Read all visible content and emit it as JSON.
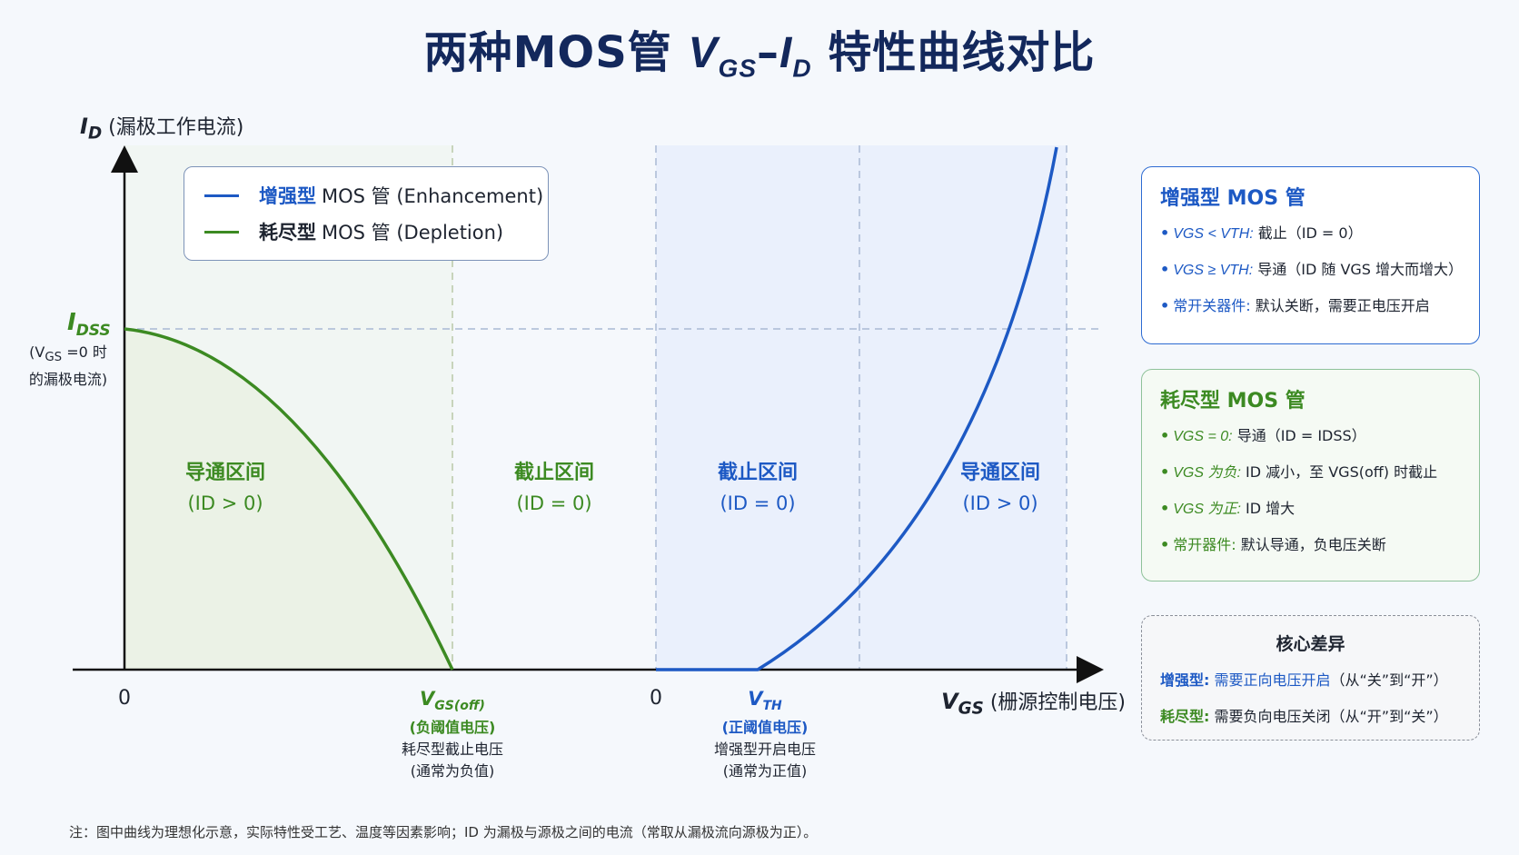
{
  "title": {
    "prefix": "两种MOS管",
    "v": "V",
    "v_sub": "GS",
    "dash": "–",
    "i": "I",
    "i_sub": "D",
    "suffix": "特性曲线对比"
  },
  "axes": {
    "y_label_main": "I",
    "y_label_sub": "D",
    "y_label_rest": "(漏极工作电流)",
    "x_label_main": "V",
    "x_label_sub": "GS",
    "x_label_rest": "(栅源控制电压)",
    "zero_left": "0",
    "zero_right": "0"
  },
  "idss": {
    "main": "I",
    "sub": "DSS",
    "note_line1_pre": "(V",
    "note_line1_sub": "GS",
    "note_line1_post": " =0 时",
    "note_line2": "的漏极电流)"
  },
  "legend": {
    "enh_cn": "增强型",
    "enh_rest": "MOS 管 (Enhancement)",
    "dep_cn": "耗尽型",
    "dep_rest": "MOS 管 (Depletion)"
  },
  "regions": {
    "dep_on": {
      "title": "导通区间",
      "cond": "(ID > 0)"
    },
    "dep_off": {
      "title": "截止区间",
      "cond": "(ID = 0)"
    },
    "enh_off": {
      "title": "截止区间",
      "cond": "(ID = 0)"
    },
    "enh_on": {
      "title": "导通区间",
      "cond": "(ID > 0)"
    }
  },
  "vgs_off": {
    "sym": "V",
    "sub": "GS(off)",
    "line2": "(负阈值电压)",
    "line3": "耗尽型截止电压",
    "line4": "(通常为负值)"
  },
  "vth": {
    "sym": "V",
    "sub": "TH",
    "line2": "(正阈值电压)",
    "line3": "增强型开启电压",
    "line4": "(通常为正值)"
  },
  "card_enh": {
    "title": "增强型 MOS 管",
    "items": [
      {
        "key": "VGS < VTH:",
        "text": "截止（ID = 0）"
      },
      {
        "key": "VGS ≥ VTH:",
        "text": "导通（ID 随 VGS 增大而增大）"
      },
      {
        "key": "常开关器件:",
        "text": "默认关断，需要正电压开启"
      }
    ]
  },
  "card_dep": {
    "title": "耗尽型 MOS 管",
    "items": [
      {
        "key": "VGS = 0:",
        "text": "导通（ID = IDSS）"
      },
      {
        "key": "VGS 为负:",
        "text": "ID 减小，至 VGS(off) 时截止"
      },
      {
        "key": "VGS 为正:",
        "text": "ID 增大"
      },
      {
        "key": "常开器件:",
        "text": "默认导通，负电压关断"
      }
    ]
  },
  "card_diff": {
    "title": "核心差异",
    "enh_key": "增强型:",
    "enh_text": "需要正向电压开启",
    "enh_tail": "（从“关”到“开”）",
    "dep_key": "耗尽型:",
    "dep_text": "需要负向电压关闭",
    "dep_tail": "（从“开”到“关”）"
  },
  "note": "注：图中曲线为理想化示意，实际特性受工艺、温度等因素影响；ID 为漏极与源极之间的电流（常取从漏极流向源极为正）。",
  "colors": {
    "enh": "#1d59c4",
    "dep": "#3c8a22",
    "title": "#13285c"
  }
}
